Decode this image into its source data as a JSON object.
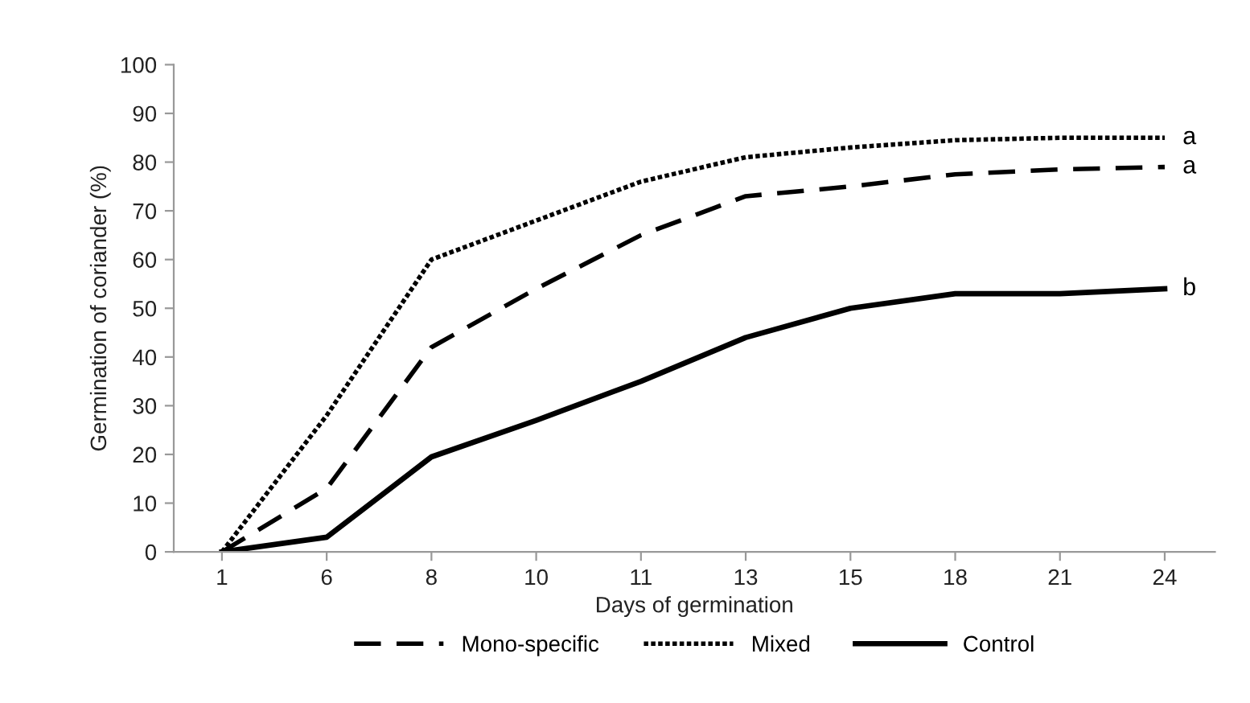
{
  "chart_data": {
    "type": "line",
    "xlabel": "Days of germination",
    "ylabel": "Germination of coriander (%)",
    "categories": [
      "1",
      "6",
      "8",
      "10",
      "11",
      "13",
      "15",
      "18",
      "21",
      "24"
    ],
    "series": [
      {
        "name": "Mono-specific",
        "color": "#000000",
        "line_style": "dashed",
        "values": [
          0,
          13,
          42,
          54,
          65,
          73,
          75,
          77.5,
          78.5,
          79
        ]
      },
      {
        "name": "Mixed",
        "color": "#000000",
        "line_style": "dotted",
        "values": [
          0,
          28,
          60,
          68,
          76,
          81,
          83,
          84.5,
          85,
          85
        ]
      },
      {
        "name": "Control",
        "color": "#000000",
        "line_style": "solid",
        "values": [
          0,
          3,
          19.5,
          27,
          35,
          44,
          50,
          53,
          53,
          54
        ]
      }
    ],
    "annotations": [
      {
        "text": "a",
        "x": "24",
        "y": 85
      },
      {
        "text": "a",
        "x": "24",
        "y": 79
      },
      {
        "text": "b",
        "x": "24",
        "y": 54
      }
    ],
    "ylim": [
      0,
      100
    ],
    "yticks": [
      0,
      10,
      20,
      30,
      40,
      50,
      60,
      70,
      80,
      90,
      100
    ],
    "grid": false,
    "legend": "bottom",
    "marker": "none"
  }
}
